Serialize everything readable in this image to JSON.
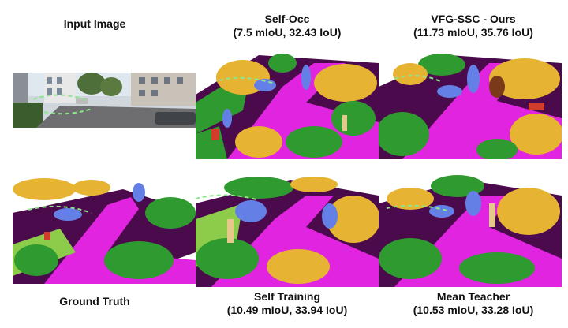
{
  "panels": {
    "input": {
      "title": "Input Image",
      "subtitle": ""
    },
    "self_occ": {
      "title": "Self-Occ",
      "subtitle": "(7.5 mIoU, 32.43 IoU)"
    },
    "vfg_ssc": {
      "title": "VFG-SSC - Ours",
      "subtitle": "(11.73 mIoU, 35.76 IoU)"
    },
    "ground_truth": {
      "title": "Ground Truth",
      "subtitle": ""
    },
    "self_training": {
      "title": "Self Training",
      "subtitle": "(10.49 mIoU, 33.94 IoU)"
    },
    "mean_teacher": {
      "title": "Mean Teacher",
      "subtitle": "(10.53 mIoU, 33.28 IoU)"
    }
  },
  "colors": {
    "road": "#e024e0",
    "sidewalk": "#4b0a4b",
    "building": "#e6b432",
    "vegetation": "#2f9a2f",
    "terrain": "#8ccc4a",
    "car": "#6480e6",
    "trunk": "#e6c88c",
    "pole": "#d23c2a",
    "lane-marking": "#8ce68c"
  }
}
